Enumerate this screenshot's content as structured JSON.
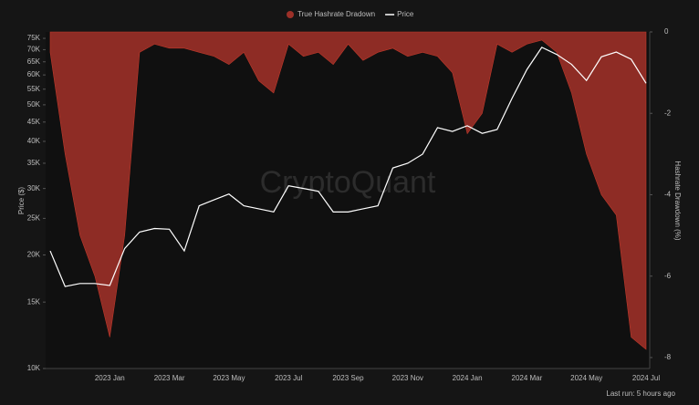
{
  "chart_data": {
    "type": "line",
    "watermark": "CryptoQuant",
    "ylabel": "Price ($)",
    "y2label": "Hashrate Drawdown (%)",
    "footer": "Last run: 5 hours ago",
    "categories": [
      null,
      null,
      null,
      null,
      "2023 Jan",
      null,
      null,
      null,
      "2023 Mar",
      null,
      null,
      null,
      "2023 May",
      null,
      null,
      null,
      "2023 Jul",
      null,
      null,
      null,
      "2023 Sep",
      null,
      null,
      null,
      "2023 Nov",
      null,
      null,
      null,
      "2024 Jan",
      null,
      null,
      null,
      "2024 Mar",
      null,
      null,
      null,
      "2024 May",
      null,
      null,
      null,
      "2024 Jul"
    ],
    "ylog": true,
    "ylim": [
      10000,
      78000
    ],
    "yticks": [
      {
        "value": 10000,
        "label": "10K"
      },
      {
        "value": 15000,
        "label": "15K"
      },
      {
        "value": 20000,
        "label": "20K"
      },
      {
        "value": 25000,
        "label": "25K"
      },
      {
        "value": 30000,
        "label": "30K"
      },
      {
        "value": 35000,
        "label": "35K"
      },
      {
        "value": 40000,
        "label": "40K"
      },
      {
        "value": 45000,
        "label": "45K"
      },
      {
        "value": 50000,
        "label": "50K"
      },
      {
        "value": 55000,
        "label": "55K"
      },
      {
        "value": 60000,
        "label": "60K"
      },
      {
        "value": 65000,
        "label": "65K"
      },
      {
        "value": 70000,
        "label": "70K"
      },
      {
        "value": 75000,
        "label": "75K"
      }
    ],
    "y2lim": [
      0,
      -8.27
    ],
    "y2ticks": [
      0,
      -2,
      -4,
      -6,
      -8
    ],
    "series": [
      {
        "name": "True Hashrate Dradown",
        "color": "#9c3028",
        "axis": "y2",
        "type": "area",
        "values": [
          -0.5,
          -3,
          -5,
          -6,
          -7.5,
          -5,
          -0.5,
          -0.3,
          -0.4,
          -0.4,
          -0.5,
          -0.6,
          -0.8,
          -0.5,
          -1.2,
          -1.5,
          -0.3,
          -0.6,
          -0.5,
          -0.8,
          -0.3,
          -0.7,
          -0.5,
          -0.4,
          -0.6,
          -0.5,
          -0.6,
          -1,
          -2.5,
          -2,
          -0.3,
          -0.5,
          -0.3,
          -0.2,
          -0.5,
          -1.5,
          -3,
          -4,
          -4.5,
          -7.5,
          -7.8
        ]
      },
      {
        "name": "Price",
        "color": "#ffffff",
        "type": "line",
        "values": [
          20500,
          16500,
          16800,
          16800,
          16600,
          20800,
          23000,
          23500,
          23400,
          20500,
          27000,
          28000,
          29000,
          27000,
          26500,
          26000,
          30500,
          30000,
          29500,
          26000,
          26000,
          26500,
          27000,
          34000,
          35000,
          37000,
          43500,
          42500,
          44000,
          42000,
          43000,
          52000,
          62000,
          71000,
          68000,
          64000,
          58000,
          67000,
          69000,
          66000,
          57000
        ]
      }
    ]
  }
}
